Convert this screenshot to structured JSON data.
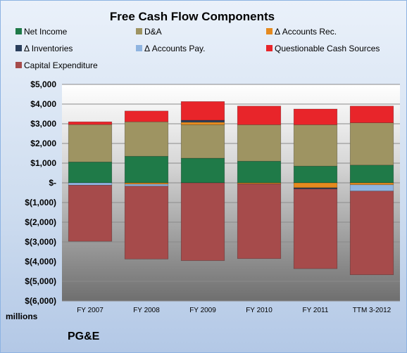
{
  "chart_data": {
    "type": "bar",
    "stacked": true,
    "title": "Free Cash Flow Components",
    "ylabel": "",
    "units_label": "millions",
    "categories": [
      "FY 2007",
      "FY 2008",
      "FY 2009",
      "FY 2010",
      "FY 2011",
      "TTM 3-2012"
    ],
    "ylim": [
      -6000,
      5000
    ],
    "yticks": [
      {
        "value": 5000,
        "label": "$5,000"
      },
      {
        "value": 4000,
        "label": "$4,000"
      },
      {
        "value": 3000,
        "label": "$3,000"
      },
      {
        "value": 2000,
        "label": "$2,000"
      },
      {
        "value": 1000,
        "label": "$1,000"
      },
      {
        "value": 0,
        "label": "$-"
      },
      {
        "value": -1000,
        "label": "$(1,000)"
      },
      {
        "value": -2000,
        "label": "$(2,000)"
      },
      {
        "value": -3000,
        "label": "$(3,000)"
      },
      {
        "value": -4000,
        "label": "$(4,000)"
      },
      {
        "value": -5000,
        "label": "$(5,000)"
      },
      {
        "value": -6000,
        "label": "$(6,000)"
      }
    ],
    "grid": true,
    "legend_position": "top",
    "series": [
      {
        "name": "Net Income",
        "color": "#1f7a48",
        "values": [
          1060,
          1350,
          1250,
          1100,
          850,
          900
        ]
      },
      {
        "name": "D&A",
        "color": "#9e9462",
        "values": [
          1900,
          1750,
          1700,
          1850,
          2100,
          2150
        ]
      },
      {
        "name": "Δ Accounts Rec.",
        "color": "#e58a1f",
        "values": [
          0,
          -70,
          130,
          -50,
          -250,
          -100
        ]
      },
      {
        "name": "Δ Inventories",
        "color": "#2b3f5c",
        "values": [
          0,
          0,
          100,
          0,
          -60,
          0
        ]
      },
      {
        "name": "Δ Accounts Pay.",
        "color": "#8fb4e0",
        "values": [
          -120,
          -100,
          0,
          0,
          0,
          -320
        ]
      },
      {
        "name": "Questionable Cash Sources",
        "color": "#e8252a",
        "values": [
          140,
          550,
          950,
          950,
          800,
          850
        ]
      },
      {
        "name": "Capital Expenditure",
        "color": "#a64b4b",
        "values": [
          -2850,
          -3700,
          -3950,
          -3800,
          -4050,
          -4250
        ]
      }
    ]
  },
  "footer": {
    "units": "millions",
    "company": "PG&E"
  }
}
